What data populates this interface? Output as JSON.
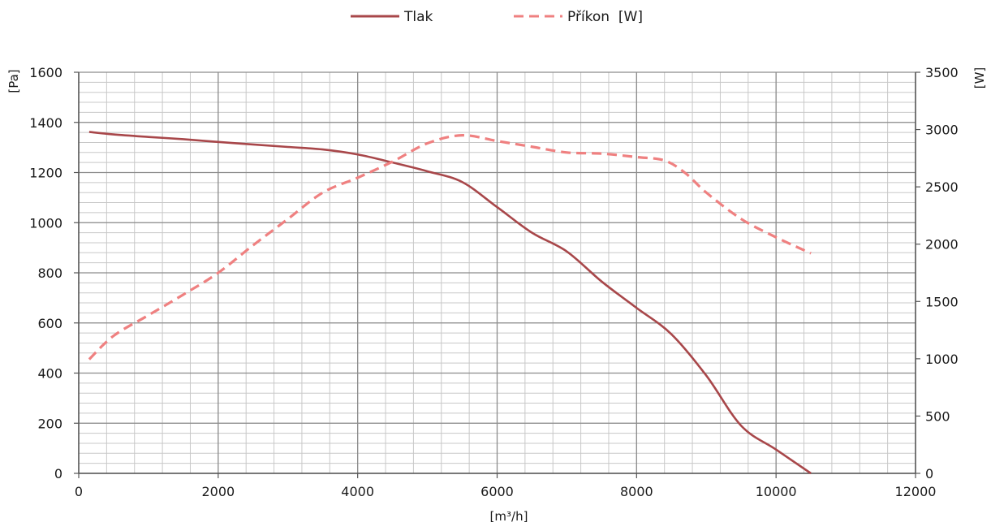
{
  "chart_data": {
    "type": "line",
    "x_label": "[m³/h]",
    "y_left_label": "[Pa]",
    "y_right_label": "[W]",
    "xlim": [
      0,
      12000
    ],
    "ylim_left": [
      0,
      1600
    ],
    "ylim_right": [
      0,
      3500
    ],
    "x_ticks": [
      0,
      2000,
      4000,
      6000,
      8000,
      10000,
      12000
    ],
    "y_left_ticks": [
      0,
      200,
      400,
      600,
      800,
      1000,
      1200,
      1400,
      1600
    ],
    "y_right_ticks": [
      0,
      500,
      1000,
      1500,
      2000,
      2500,
      3000,
      3500
    ],
    "grid": true,
    "legend_position": "top",
    "series": [
      {
        "name": "Tlak",
        "axis": "left",
        "color": "#a8474a",
        "style": "solid",
        "points": [
          [
            150,
            1362
          ],
          [
            500,
            1352
          ],
          [
            1000,
            1342
          ],
          [
            1500,
            1333
          ],
          [
            2000,
            1322
          ],
          [
            2500,
            1312
          ],
          [
            3000,
            1302
          ],
          [
            3500,
            1292
          ],
          [
            4000,
            1272
          ],
          [
            4500,
            1240
          ],
          [
            5000,
            1205
          ],
          [
            5500,
            1162
          ],
          [
            6000,
            1062
          ],
          [
            6500,
            960
          ],
          [
            7000,
            885
          ],
          [
            7500,
            765
          ],
          [
            8000,
            660
          ],
          [
            8500,
            555
          ],
          [
            9000,
            390
          ],
          [
            9500,
            190
          ],
          [
            10000,
            95
          ],
          [
            10500,
            0
          ]
        ]
      },
      {
        "name": "Příkon  [W]",
        "axis": "right",
        "color": "#ef8080",
        "style": "dashed",
        "points": [
          [
            150,
            995
          ],
          [
            500,
            1200
          ],
          [
            1000,
            1380
          ],
          [
            1500,
            1560
          ],
          [
            2000,
            1750
          ],
          [
            2500,
            1990
          ],
          [
            3000,
            2220
          ],
          [
            3500,
            2450
          ],
          [
            4000,
            2580
          ],
          [
            4500,
            2720
          ],
          [
            5000,
            2880
          ],
          [
            5500,
            2950
          ],
          [
            6000,
            2900
          ],
          [
            6500,
            2850
          ],
          [
            7000,
            2800
          ],
          [
            7500,
            2790
          ],
          [
            8000,
            2760
          ],
          [
            8400,
            2730
          ],
          [
            8700,
            2620
          ],
          [
            9000,
            2450
          ],
          [
            9500,
            2220
          ],
          [
            10000,
            2060
          ],
          [
            10500,
            1920
          ]
        ]
      }
    ]
  }
}
